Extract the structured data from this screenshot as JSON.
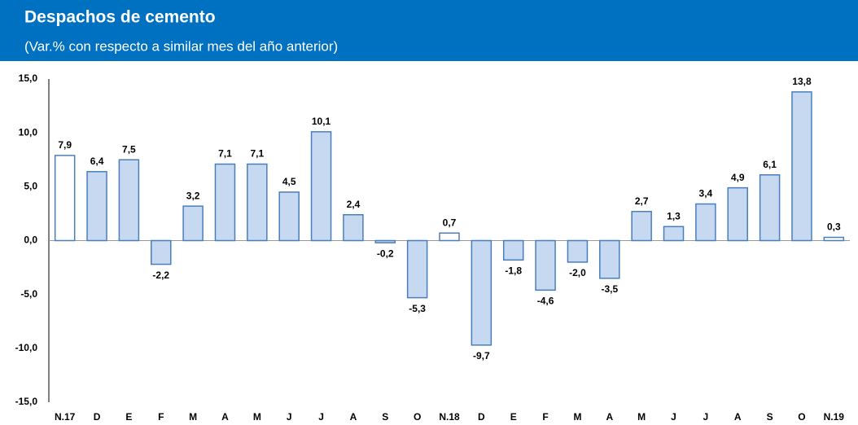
{
  "chart_data": {
    "type": "bar",
    "title": "Despachos de cemento",
    "subtitle": "(Var.% con respecto a similar mes del año anterior)",
    "categories": [
      "N.17",
      "D",
      "E",
      "F",
      "M",
      "A",
      "M",
      "J",
      "J",
      "A",
      "S",
      "O",
      "N.18",
      "D",
      "E",
      "F",
      "M",
      "A",
      "M",
      "J",
      "J",
      "A",
      "S",
      "O",
      "N.19"
    ],
    "values": [
      7.9,
      6.4,
      7.5,
      -2.2,
      3.2,
      7.1,
      7.1,
      4.5,
      10.1,
      2.4,
      -0.2,
      -5.3,
      0.7,
      -9.7,
      -1.8,
      -4.6,
      -2.0,
      -3.5,
      2.7,
      1.3,
      3.4,
      4.9,
      6.1,
      13.8,
      0.3
    ],
    "value_labels": [
      "7,9",
      "6,4",
      "7,5",
      "-2,2",
      "3,2",
      "7,1",
      "7,1",
      "4,5",
      "10,1",
      "2,4",
      "-0,2",
      "-5,3",
      "0,7",
      "-9,7",
      "-1,8",
      "-4,6",
      "-2,0",
      "-3,5",
      "2,7",
      "1,3",
      "3,4",
      "4,9",
      "6,1",
      "13,8",
      "0,3"
    ],
    "colors": [
      "#ffffff",
      "#c6d9f1",
      "#c6d9f1",
      "#c6d9f1",
      "#c6d9f1",
      "#c6d9f1",
      "#c6d9f1",
      "#c6d9f1",
      "#c6d9f1",
      "#c6d9f1",
      "#c6d9f1",
      "#c6d9f1",
      "#ffffff",
      "#c6d9f1",
      "#c6d9f1",
      "#c6d9f1",
      "#c6d9f1",
      "#c6d9f1",
      "#c6d9f1",
      "#c6d9f1",
      "#c6d9f1",
      "#c6d9f1",
      "#c6d9f1",
      "#c6d9f1",
      "#ffffff"
    ],
    "edge_color": "#4a7ebb",
    "ylim": [
      -15,
      15
    ],
    "yticks": [
      {
        "value": 15,
        "label": "15,0"
      },
      {
        "value": 10,
        "label": "10,0"
      },
      {
        "value": 5,
        "label": "5,0"
      },
      {
        "value": 0,
        "label": "0,0"
      },
      {
        "value": -5,
        "label": "-5,0"
      },
      {
        "value": -10,
        "label": "-10,0"
      },
      {
        "value": -15,
        "label": "-15,0"
      }
    ],
    "grid": false
  }
}
